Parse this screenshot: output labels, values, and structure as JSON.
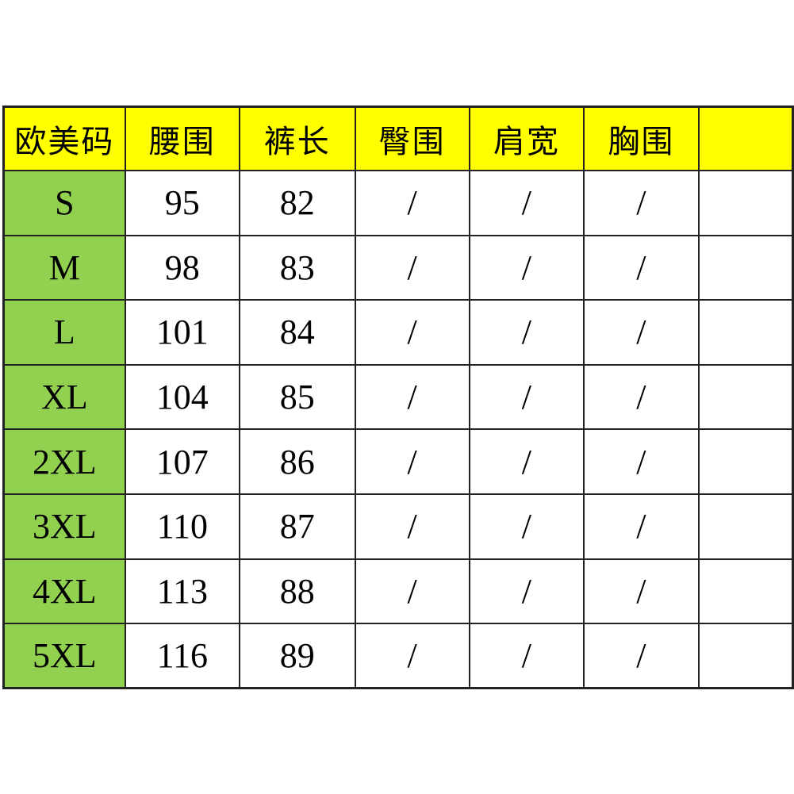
{
  "colors": {
    "header_bg": "#ffff00",
    "size_column_bg": "#92d050",
    "cell_bg": "#ffffff",
    "grid_border": "#222222",
    "text": "#000000",
    "page_bg": "#ffffff"
  },
  "chart_data": {
    "type": "table",
    "title": "",
    "columns": [
      "欧美码",
      "腰围",
      "裤长",
      "臀围",
      "肩宽",
      "胸围"
    ],
    "rows": [
      [
        "S",
        "95",
        "82",
        "/",
        "/",
        "/"
      ],
      [
        "M",
        "98",
        "83",
        "/",
        "/",
        "/"
      ],
      [
        "L",
        "101",
        "84",
        "/",
        "/",
        "/"
      ],
      [
        "XL",
        "104",
        "85",
        "/",
        "/",
        "/"
      ],
      [
        "2XL",
        "107",
        "86",
        "/",
        "/",
        "/"
      ],
      [
        "3XL",
        "110",
        "87",
        "/",
        "/",
        "/"
      ],
      [
        "4XL",
        "113",
        "88",
        "/",
        "/",
        "/"
      ],
      [
        "5XL",
        "116",
        "89",
        "/",
        "/",
        "/"
      ]
    ],
    "layout_hints": {
      "header_fill": "yellow",
      "first_column_fill": "green",
      "gridlines": true,
      "seventh_column_cut_off_at_right_edge": true
    }
  }
}
